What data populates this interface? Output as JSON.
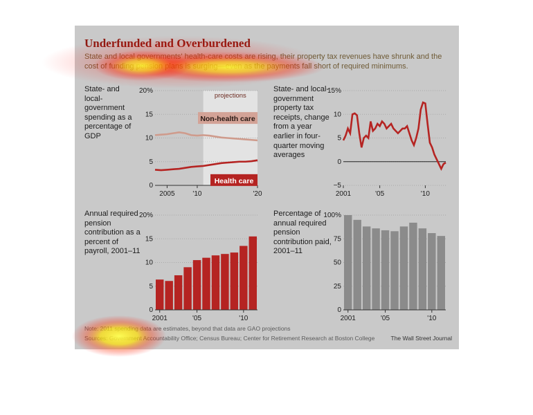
{
  "header": {
    "title": "Underfunded and Overburdened",
    "subtitle": "State and local governments' health-care costs are rising, their property tax revenues have shrunk and the cost of funding pension plans is surging—even as the payments fall short of required minimums."
  },
  "footer": {
    "note": "Note: 2011 spending data are estimates, beyond that data are GAO projections",
    "source": "Sources: Government Accountability Office; Census Bureau; Center for Retirement Research at Boston College",
    "credit": "The Wall Street Journal"
  },
  "colors": {
    "background": "#c9c9c9",
    "accent": "#b52422",
    "bar_gray": "#8b8b8b",
    "secondary_line": "#cf9b8c",
    "title": "#8e1a12"
  },
  "chart_data": [
    {
      "type": "line",
      "label": "State- and local-government spending as a percentage of GDP",
      "x_ticks": [
        "2005",
        "'10",
        "'20"
      ],
      "y_ticks": [
        "20%",
        "15",
        "10",
        "5",
        "0"
      ],
      "ylim": [
        0,
        20
      ],
      "xlim": [
        2003,
        2020
      ],
      "projection_start": 2011,
      "annotation": "projections",
      "series": [
        {
          "name": "Non-health care",
          "x": [
            2003,
            2004,
            2005,
            2006,
            2007,
            2008,
            2009,
            2010,
            2011,
            2012,
            2013,
            2014,
            2015,
            2016,
            2017,
            2018,
            2019,
            2020
          ],
          "y": [
            10.6,
            10.7,
            10.8,
            11.0,
            11.2,
            11.0,
            10.6,
            10.5,
            10.6,
            10.5,
            10.3,
            10.1,
            10.0,
            9.9,
            9.8,
            9.7,
            9.6,
            9.5
          ]
        },
        {
          "name": "Health care",
          "x": [
            2003,
            2004,
            2005,
            2006,
            2007,
            2008,
            2009,
            2010,
            2011,
            2012,
            2013,
            2014,
            2015,
            2016,
            2017,
            2018,
            2019,
            2020
          ],
          "y": [
            3.3,
            3.2,
            3.3,
            3.4,
            3.5,
            3.7,
            3.9,
            4.0,
            4.1,
            4.3,
            4.5,
            4.7,
            4.8,
            4.9,
            5.0,
            5.0,
            5.1,
            5.3
          ]
        }
      ]
    },
    {
      "type": "line",
      "label": "State- and local-government property tax receipts, change from a year earlier in four-quarter moving averages",
      "x_ticks": [
        "2001",
        "'05",
        "'10"
      ],
      "y_ticks": [
        "15%",
        "10",
        "5",
        "0",
        "−5"
      ],
      "ylim": [
        -5,
        15
      ],
      "xlim": [
        2001,
        2012.25
      ],
      "series": [
        {
          "name": "",
          "x": [
            2001,
            2001.25,
            2001.5,
            2001.75,
            2002,
            2002.25,
            2002.5,
            2002.75,
            2003,
            2003.25,
            2003.5,
            2003.75,
            2004,
            2004.25,
            2004.5,
            2004.75,
            2005,
            2005.25,
            2005.5,
            2005.75,
            2006,
            2006.25,
            2006.5,
            2006.75,
            2007,
            2007.25,
            2007.5,
            2007.75,
            2008,
            2008.25,
            2008.5,
            2008.75,
            2009,
            2009.25,
            2009.5,
            2009.75,
            2010,
            2010.25,
            2010.5,
            2010.75,
            2011,
            2011.25,
            2011.5,
            2011.75,
            2012,
            2012.25
          ],
          "y": [
            4.5,
            5.5,
            7.0,
            6.0,
            10.0,
            10.2,
            9.8,
            6.0,
            3.0,
            5.0,
            5.5,
            5.0,
            8.5,
            6.5,
            7.0,
            8.0,
            7.5,
            8.5,
            8.0,
            7.0,
            7.5,
            8.0,
            7.0,
            6.5,
            6.0,
            6.5,
            7.0,
            7.0,
            7.5,
            6.0,
            4.5,
            3.5,
            5.0,
            7.0,
            11.0,
            12.5,
            12.3,
            8.0,
            4.0,
            3.0,
            1.5,
            0.5,
            -0.5,
            -1.5,
            -0.5,
            -0.2
          ]
        }
      ]
    },
    {
      "type": "bar",
      "label": "Annual required pension contribution as a percent of payroll, 2001–11",
      "categories": [
        "2001",
        "2002",
        "2003",
        "2004",
        "2005",
        "2006",
        "2007",
        "2008",
        "2009",
        "2010",
        "2011"
      ],
      "values": [
        6.4,
        6.1,
        7.3,
        9.0,
        10.5,
        11.0,
        11.5,
        11.8,
        12.1,
        13.5,
        15.5
      ],
      "x_ticks": [
        "2001",
        "'05",
        "'10"
      ],
      "y_ticks": [
        "20%",
        "15",
        "10",
        "5",
        "0"
      ],
      "ylim": [
        0,
        20
      ]
    },
    {
      "type": "bar",
      "label": "Percentage of annual required pension contribution paid, 2001–11",
      "categories": [
        "2001",
        "2002",
        "2003",
        "2004",
        "2005",
        "2006",
        "2007",
        "2008",
        "2009",
        "2010",
        "2011"
      ],
      "values": [
        100,
        95,
        88,
        86,
        84,
        83,
        88,
        92,
        86,
        81,
        78
      ],
      "x_ticks": [
        "2001",
        "'05",
        "'10"
      ],
      "y_ticks": [
        "100%",
        "75",
        "50",
        "25",
        "0"
      ],
      "ylim": [
        0,
        100
      ]
    }
  ]
}
